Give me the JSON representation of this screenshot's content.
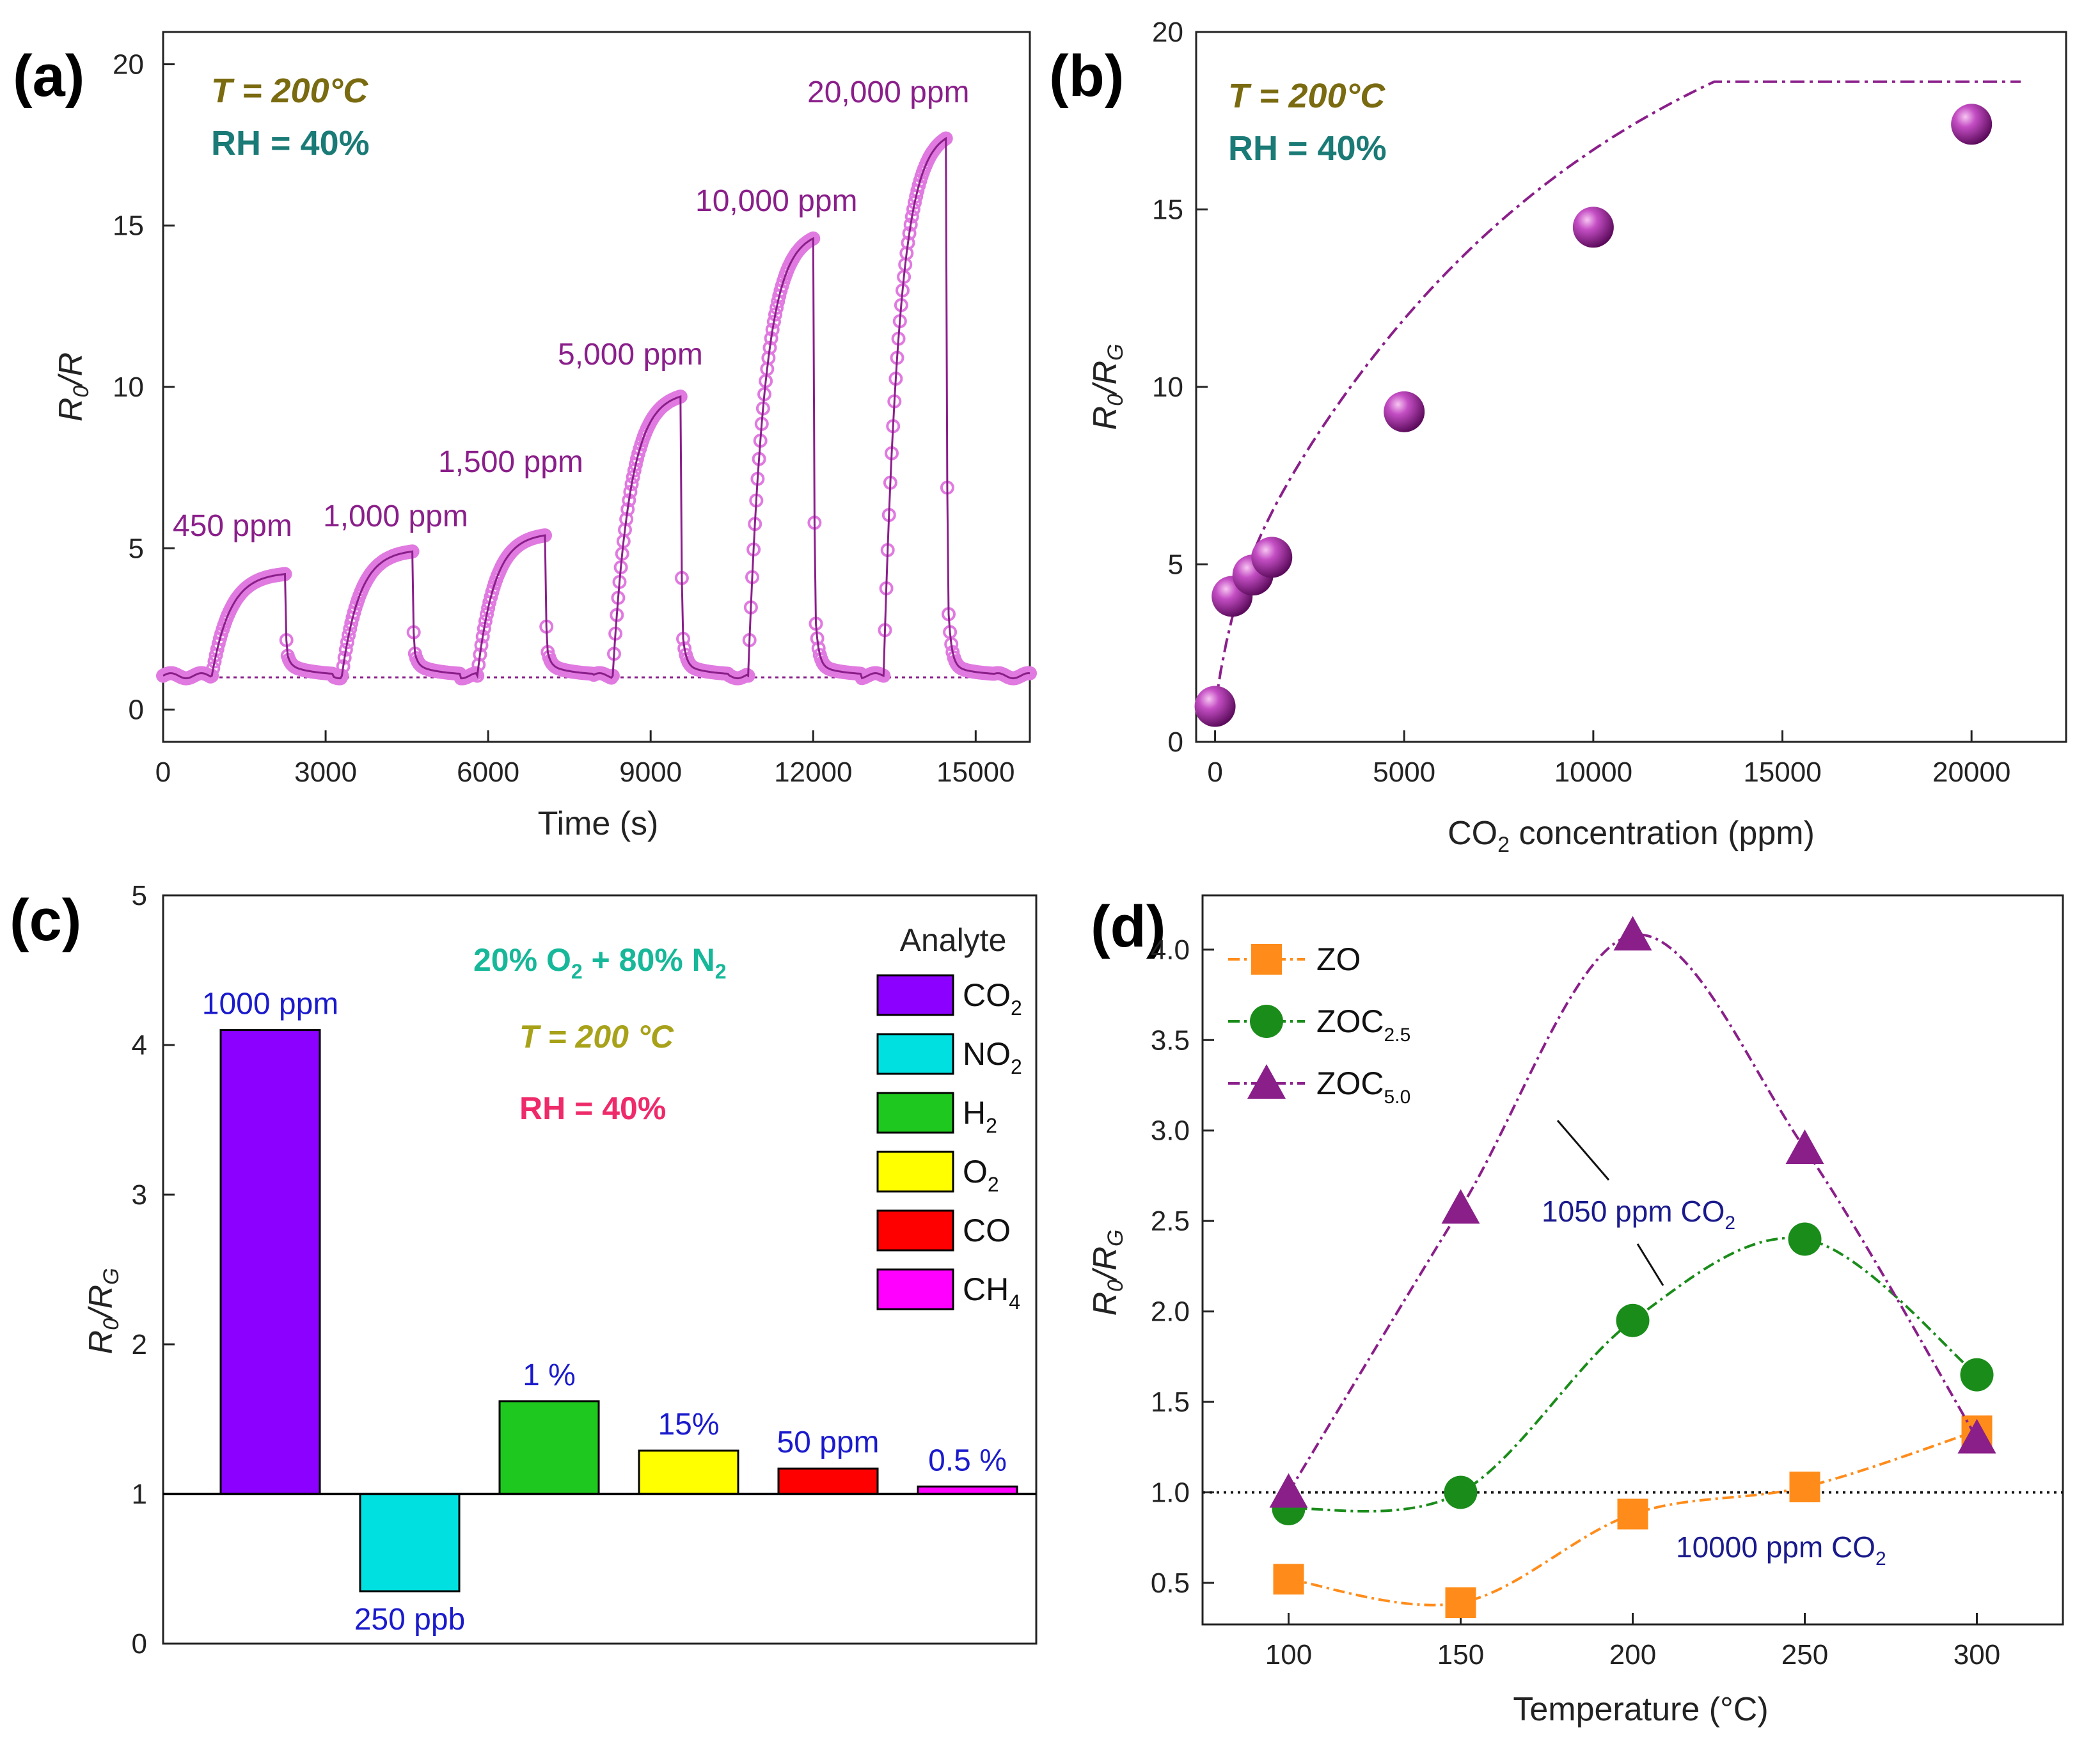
{
  "chart_data": [
    {
      "panel": "(a)",
      "type": "line",
      "xlabel": "Time (s)",
      "ylabel": "R0/R",
      "ylabel_main": "R",
      "ylabel_sub": "0",
      "ylabel_rest": "/R",
      "xlim": [
        0,
        16000
      ],
      "ylim": [
        -1,
        21
      ],
      "xticks": [
        0,
        3000,
        6000,
        9000,
        12000,
        15000
      ],
      "yticks": [
        0,
        5,
        10,
        15,
        20
      ],
      "baseline": 1,
      "conditions": [
        "T = 200°C",
        "RH = 40%"
      ],
      "condition_colors": [
        "#7a6a10",
        "#1a7a76"
      ],
      "line_color": "#8a1f8a",
      "marker_color": "#e07ae0",
      "pulses": [
        {
          "label": "450 ppm",
          "on": 900,
          "off": 2250,
          "peak": 4.2
        },
        {
          "label": "1,000 ppm",
          "on": 3300,
          "off": 4600,
          "peak": 4.9
        },
        {
          "label": "1,500 ppm",
          "on": 5800,
          "off": 7050,
          "peak": 5.4
        },
        {
          "label": "5,000 ppm",
          "on": 8300,
          "off": 9550,
          "peak": 9.7
        },
        {
          "label": "10,000 ppm",
          "on": 10800,
          "off": 12000,
          "peak": 14.6
        },
        {
          "label": "20,000 ppm",
          "on": 13300,
          "off": 14450,
          "peak": 17.7
        }
      ]
    },
    {
      "panel": "(b)",
      "type": "scatter",
      "xlabel_pre": "CO",
      "xlabel_sub": "2",
      "xlabel_post": " concentration (ppm)",
      "ylabel_main": "R",
      "ylabel_sub": "0",
      "ylabel_mid": "/R",
      "ylabel_sub2": "G",
      "xlim": [
        -500,
        22500
      ],
      "ylim": [
        0,
        20
      ],
      "xticks": [
        0,
        5000,
        10000,
        15000,
        20000
      ],
      "yticks": [
        0,
        5,
        10,
        15,
        20
      ],
      "conditions": [
        "T = 200°C",
        "RH = 40%"
      ],
      "condition_colors": [
        "#7a6a10",
        "#1a7a76"
      ],
      "x": [
        0,
        450,
        1000,
        1500,
        5000,
        10000,
        20000
      ],
      "y": [
        1.0,
        4.1,
        4.7,
        5.2,
        9.3,
        14.5,
        17.4
      ],
      "fit_color": "#8a1f8a"
    },
    {
      "panel": "(c)",
      "type": "bar",
      "ylabel_main": "R",
      "ylabel_sub": "0",
      "ylabel_mid": "/R",
      "ylabel_sub2": "G",
      "ylim": [
        0,
        5
      ],
      "yticks": [
        0,
        1,
        2,
        3,
        4,
        5
      ],
      "baseline": 1,
      "categories": [
        "CO2",
        "NO2",
        "H2",
        "O2",
        "CO",
        "CH4"
      ],
      "values": [
        4.1,
        0.35,
        1.62,
        1.29,
        1.17,
        1.05
      ],
      "value_labels": [
        "1000 ppm",
        "250 ppb",
        "1 %",
        "15%",
        "50 ppm",
        "0.5 %"
      ],
      "bar_colors": [
        "#8b00ff",
        "#00e0e0",
        "#1ec81e",
        "#ffff00",
        "#ff0000",
        "#ff00ff"
      ],
      "legend_title": "Analyte",
      "legend": [
        {
          "main": "CO",
          "sub": "2"
        },
        {
          "main": "NO",
          "sub": "2"
        },
        {
          "main": "H",
          "sub": "2"
        },
        {
          "main": "O",
          "sub": "2"
        },
        {
          "main": "CO",
          "sub": ""
        },
        {
          "main": "CH",
          "sub": "4"
        }
      ],
      "conditions": {
        "gas": {
          "a": "20% O",
          "a_sub": "2",
          "b": " + 80% N",
          "b_sub": "2",
          "color": "#17b89a"
        },
        "temp": {
          "text": "T = 200 °C",
          "color": "#a8a21a"
        },
        "rh": {
          "text": "RH = 40%",
          "color": "#ee2a6a"
        }
      }
    },
    {
      "panel": "(d)",
      "type": "line",
      "xlabel": "Temperature (°C)",
      "ylabel_main": "R",
      "ylabel_sub": "0",
      "ylabel_mid": "/R",
      "ylabel_sub2": "G",
      "xlim": [
        75,
        325
      ],
      "ylim": [
        0.27,
        4.3
      ],
      "xticks": [
        100,
        150,
        200,
        250,
        300
      ],
      "yticks": [
        0.5,
        1.0,
        1.5,
        2.0,
        2.5,
        3.0,
        3.5,
        4.0
      ],
      "ytick_labels": [
        "0.5",
        "1.0",
        "1.5",
        "2.0",
        "2.5",
        "3.0",
        "3.5",
        "4.0"
      ],
      "baseline": 1.0,
      "x": [
        100,
        150,
        200,
        250,
        300
      ],
      "series": [
        {
          "name": "ZO",
          "name_sub": "",
          "values": [
            0.52,
            0.39,
            0.88,
            1.03,
            1.34
          ],
          "color": "#ff8c1a",
          "marker": "square"
        },
        {
          "name": "ZOC",
          "name_sub": "2.5",
          "values": [
            0.91,
            1.0,
            1.95,
            2.4,
            1.65
          ],
          "color": "#1a8c1a",
          "marker": "circle"
        },
        {
          "name": "ZOC",
          "name_sub": "5.0",
          "values": [
            1.0,
            2.57,
            4.08,
            2.9,
            1.3
          ],
          "color": "#8a1f8a",
          "marker": "triangle"
        }
      ],
      "annotations": [
        {
          "text": "1050 ppm CO",
          "sub": "2",
          "color": "#1a1a8c"
        },
        {
          "text": "10000 ppm CO",
          "sub": "2",
          "color": "#1a1a8c"
        }
      ]
    }
  ]
}
